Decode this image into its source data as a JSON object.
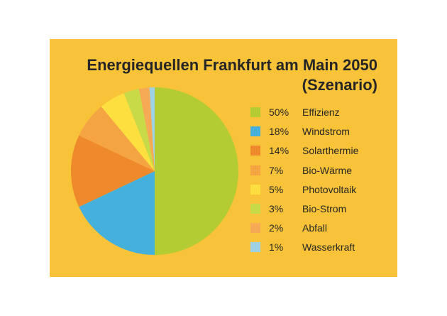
{
  "title_line1": "Energiequellen Frankfurt am Main 2050",
  "title_line2": "(Szenario)",
  "colors": {
    "background": "#f8c338",
    "text": "#262626"
  },
  "chart_data": {
    "type": "pie",
    "title": "Energiequellen Frankfurt am Main 2050 (Szenario)",
    "legend_position": "right",
    "series": [
      {
        "name": "Effizienz",
        "percent_label": "50%",
        "value": 50,
        "color": "#b3cc33"
      },
      {
        "name": "Windstrom",
        "percent_label": "18%",
        "value": 18,
        "color": "#46b0dd"
      },
      {
        "name": "Solarthermie",
        "percent_label": "14%",
        "value": 14,
        "color": "#ee8a2c"
      },
      {
        "name": "Bio-Wärme",
        "percent_label": "7%",
        "value": 7,
        "color": "#f5a444"
      },
      {
        "name": "Photovoltaik",
        "percent_label": "5%",
        "value": 5,
        "color": "#fde03f"
      },
      {
        "name": "Bio-Strom",
        "percent_label": "3%",
        "value": 3,
        "color": "#c8da48"
      },
      {
        "name": "Abfall",
        "percent_label": "2%",
        "value": 2,
        "color": "#f6aa55"
      },
      {
        "name": "Wasserkraft",
        "percent_label": "1%",
        "value": 1,
        "color": "#9fd1e5"
      }
    ]
  }
}
